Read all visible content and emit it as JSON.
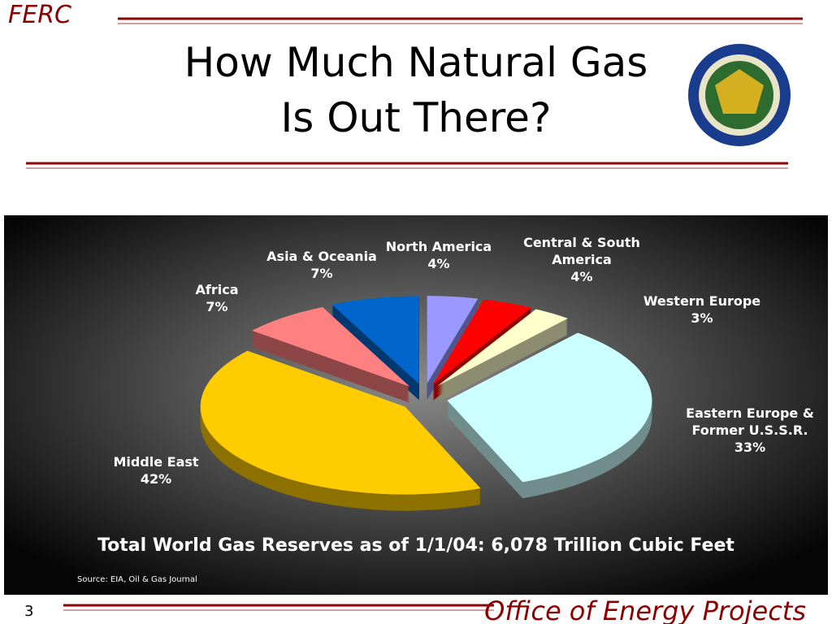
{
  "header": {
    "brand": "FERC",
    "title_lines": [
      "How Much Natural Gas",
      "Is Out There?"
    ]
  },
  "chart_data": {
    "type": "pie",
    "categories": [
      "North America",
      "Central & South America",
      "Western Europe",
      "Eastern Europe & Former U.S.S.R.",
      "Middle East",
      "Africa",
      "Asia & Oceania"
    ],
    "values": [
      4,
      4,
      3,
      33,
      42,
      7,
      7
    ],
    "value_labels": [
      "4%",
      "4%",
      "3%",
      "33%",
      "42%",
      "7%",
      "7%"
    ],
    "colors": [
      "#9999ff",
      "#ff0000",
      "#ffffcc",
      "#ccffff",
      "#ffcc00",
      "#ff8080",
      "#0066cc"
    ],
    "caption": "Total World Gas Reserves as of 1/1/04:  6,078 Trillion Cubic Feet",
    "source": "Source:  EIA, Oil & Gas Journal"
  },
  "footer": {
    "page": "3",
    "office": "Office of Energy Projects"
  }
}
